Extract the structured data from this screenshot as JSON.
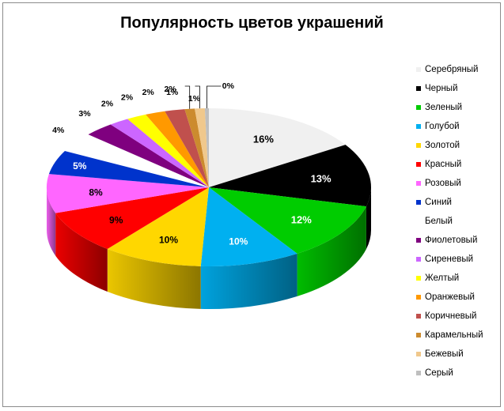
{
  "chart_data": {
    "type": "pie",
    "title": "Популярность цветов украшений",
    "legend_position": "right",
    "categories": [
      "Серебряный",
      "Черный",
      "Зеленый",
      "Голубой",
      "Золотой",
      "Красный",
      "Розовый",
      "Синий",
      "Белый",
      "Фиолетовый",
      "Сиреневый",
      "Желтый",
      "Оранжевый",
      "Коричневый",
      "Карамельный",
      "Бежевый",
      "Серый"
    ],
    "values": [
      16,
      13,
      12,
      10,
      10,
      9,
      8,
      5,
      4,
      3,
      2,
      2,
      2,
      2,
      1,
      1,
      0.4
    ],
    "labels": [
      "16%",
      "13%",
      "12%",
      "10%",
      "10%",
      "9%",
      "8%",
      "5%",
      "4%",
      "3%",
      "2%",
      "2%",
      "2%",
      "2%",
      "1%",
      "1%",
      "0%"
    ],
    "colors": [
      "#f0f0f0",
      "#000000",
      "#00cc00",
      "#00b0f0",
      "#ffd700",
      "#ff0000",
      "#ff66ff",
      "#0033cc",
      "#ffffff",
      "#7f007f",
      "#cc66ff",
      "#ffff00",
      "#ff9900",
      "#c0504d",
      "#cc8b2e",
      "#f0c88c",
      "#bfbfbf"
    ]
  }
}
